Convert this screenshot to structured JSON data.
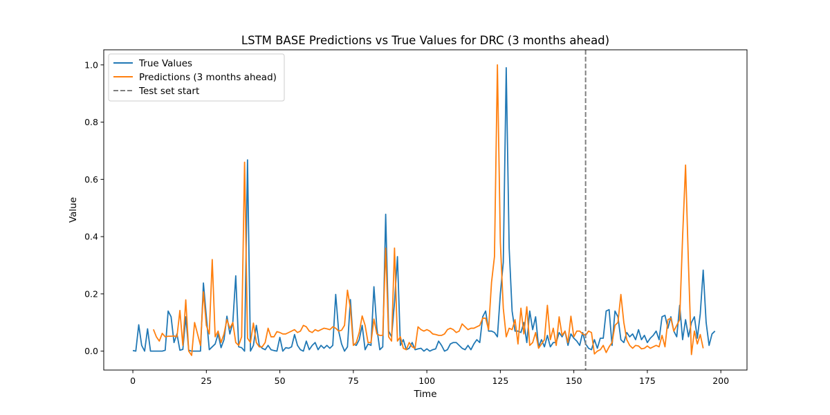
{
  "chart_data": {
    "type": "line",
    "title": "LSTM BASE Predictions vs True Values for DRC (3 months ahead)",
    "xlabel": "Time",
    "ylabel": "Value",
    "xlim": [
      -9.9,
      208.9
    ],
    "ylim": [
      -0.0661,
      1.0527
    ],
    "x_ticks": [
      0,
      25,
      50,
      75,
      100,
      125,
      150,
      175,
      200
    ],
    "y_ticks": [
      0.0,
      0.2,
      0.4,
      0.6,
      0.8,
      1.0
    ],
    "y_tick_labels": [
      "0.0",
      "0.2",
      "0.4",
      "0.6",
      "0.8",
      "1.0"
    ],
    "grid": false,
    "legend_position": "top-left",
    "test_set_start": 154,
    "series": [
      {
        "name": "True Values",
        "color": "#1f77b4",
        "x_start": 0,
        "values": [
          0.002,
          0.0,
          0.092,
          0.02,
          0.0,
          0.078,
          0.0,
          0.0,
          0.0,
          0.0,
          0.0,
          0.003,
          0.14,
          0.12,
          0.03,
          0.06,
          0.003,
          0.006,
          0.12,
          0.003,
          0.0,
          0.0,
          0.0,
          0.0,
          0.238,
          0.12,
          0.005,
          0.015,
          0.025,
          0.06,
          0.012,
          0.04,
          0.122,
          0.06,
          0.1,
          0.263,
          0.015,
          0.012,
          0.0,
          0.668,
          0.0,
          0.02,
          0.09,
          0.02,
          0.01,
          0.005,
          0.02,
          0.005,
          0.002,
          0.0,
          0.048,
          0.0,
          0.012,
          0.01,
          0.015,
          0.058,
          0.02,
          0.005,
          0.0,
          0.035,
          0.005,
          0.02,
          0.03,
          0.005,
          0.02,
          0.01,
          0.02,
          0.01,
          0.02,
          0.198,
          0.07,
          0.025,
          0.0,
          0.015,
          0.18,
          0.025,
          0.02,
          0.04,
          0.09,
          0.005,
          0.025,
          0.02,
          0.225,
          0.08,
          0.005,
          0.015,
          0.478,
          0.07,
          0.05,
          0.17,
          0.33,
          0.02,
          0.04,
          0.005,
          0.01,
          0.03,
          0.005,
          0.008,
          0.01,
          0.0,
          0.008,
          0.0,
          0.005,
          0.008,
          0.035,
          0.02,
          0.0,
          0.005,
          0.025,
          0.03,
          0.03,
          0.02,
          0.01,
          0.005,
          0.02,
          0.005,
          0.025,
          0.04,
          0.03,
          0.12,
          0.14,
          0.07,
          0.07,
          0.065,
          0.05,
          0.2,
          0.31,
          0.99,
          0.36,
          0.14,
          0.07,
          0.07,
          0.065,
          0.1,
          0.03,
          0.14,
          0.075,
          0.12,
          0.015,
          0.04,
          0.015,
          0.055,
          0.015,
          0.03,
          0.03,
          0.065,
          0.05,
          0.07,
          0.02,
          0.06,
          0.045,
          0.035,
          0.02,
          0.065,
          0.025,
          0.01,
          0.005,
          0.04,
          0.01,
          0.045,
          0.045,
          0.14,
          0.145,
          0.02,
          0.14,
          0.12,
          0.04,
          0.03,
          0.065,
          0.05,
          0.06,
          0.04,
          0.075,
          0.04,
          0.055,
          0.03,
          0.045,
          0.055,
          0.07,
          0.04,
          0.12,
          0.125,
          0.08,
          0.12,
          0.07,
          0.05,
          0.16,
          0.04,
          0.11,
          0.05,
          0.1,
          0.12,
          0.045,
          0.13,
          0.283,
          0.1,
          0.02,
          0.06,
          0.07
        ]
      },
      {
        "name": "Predictions (3 months ahead)",
        "color": "#ff7f0e",
        "x_start": 7,
        "values": [
          0.076,
          0.05,
          0.035,
          0.062,
          0.05,
          0.052,
          0.052,
          0.053,
          0.05,
          0.142,
          0.02,
          0.179,
          0.0,
          -0.015,
          0.1,
          0.06,
          0.02,
          0.207,
          0.09,
          0.06,
          0.32,
          0.05,
          0.07,
          0.03,
          0.06,
          0.11,
          0.08,
          0.1,
          0.03,
          0.02,
          0.05,
          0.66,
          0.045,
          0.03,
          0.098,
          0.03,
          0.015,
          0.015,
          0.03,
          0.08,
          0.05,
          0.05,
          0.068,
          0.065,
          0.06,
          0.06,
          0.065,
          0.07,
          0.075,
          0.065,
          0.07,
          0.09,
          0.085,
          0.07,
          0.065,
          0.075,
          0.07,
          0.075,
          0.08,
          0.078,
          0.075,
          0.085,
          0.08,
          0.07,
          0.073,
          0.09,
          0.213,
          0.15,
          0.02,
          0.03,
          0.065,
          0.123,
          0.09,
          0.03,
          0.03,
          0.112,
          0.06,
          0.055,
          0.055,
          0.36,
          0.05,
          0.035,
          0.36,
          0.035,
          0.05,
          0.01,
          0.005,
          0.03,
          0.015,
          0.01,
          0.085,
          0.075,
          0.07,
          0.075,
          0.07,
          0.06,
          0.058,
          0.055,
          0.055,
          0.06,
          0.075,
          0.08,
          0.075,
          0.065,
          0.07,
          0.095,
          0.085,
          0.075,
          0.08,
          0.08,
          0.085,
          0.09,
          0.115,
          0.115,
          0.075,
          0.24,
          0.33,
          1.0,
          0.38,
          0.15,
          0.05,
          0.08,
          0.075,
          0.11,
          0.025,
          0.15,
          0.06,
          0.155,
          0.02,
          0.03,
          0.065,
          0.01,
          0.025,
          0.04,
          0.16,
          0.04,
          0.08,
          0.02,
          0.12,
          0.055,
          0.07,
          0.03,
          0.122,
          0.05,
          0.07,
          0.07,
          0.06,
          0.055,
          0.07,
          0.065,
          -0.01,
          0.0,
          0.005,
          0.02,
          -0.005,
          0.015,
          0.03,
          0.09,
          0.1,
          0.198,
          0.1,
          0.04,
          0.02,
          0.01,
          0.02,
          0.018,
          0.008,
          0.01,
          0.018,
          0.01,
          0.015,
          0.02,
          0.015,
          0.055,
          0.015,
          0.11,
          0.115,
          0.07,
          0.09,
          0.11,
          0.4,
          0.65,
          0.3,
          -0.012,
          0.07,
          0.025,
          0.058,
          0.01
        ]
      }
    ]
  }
}
